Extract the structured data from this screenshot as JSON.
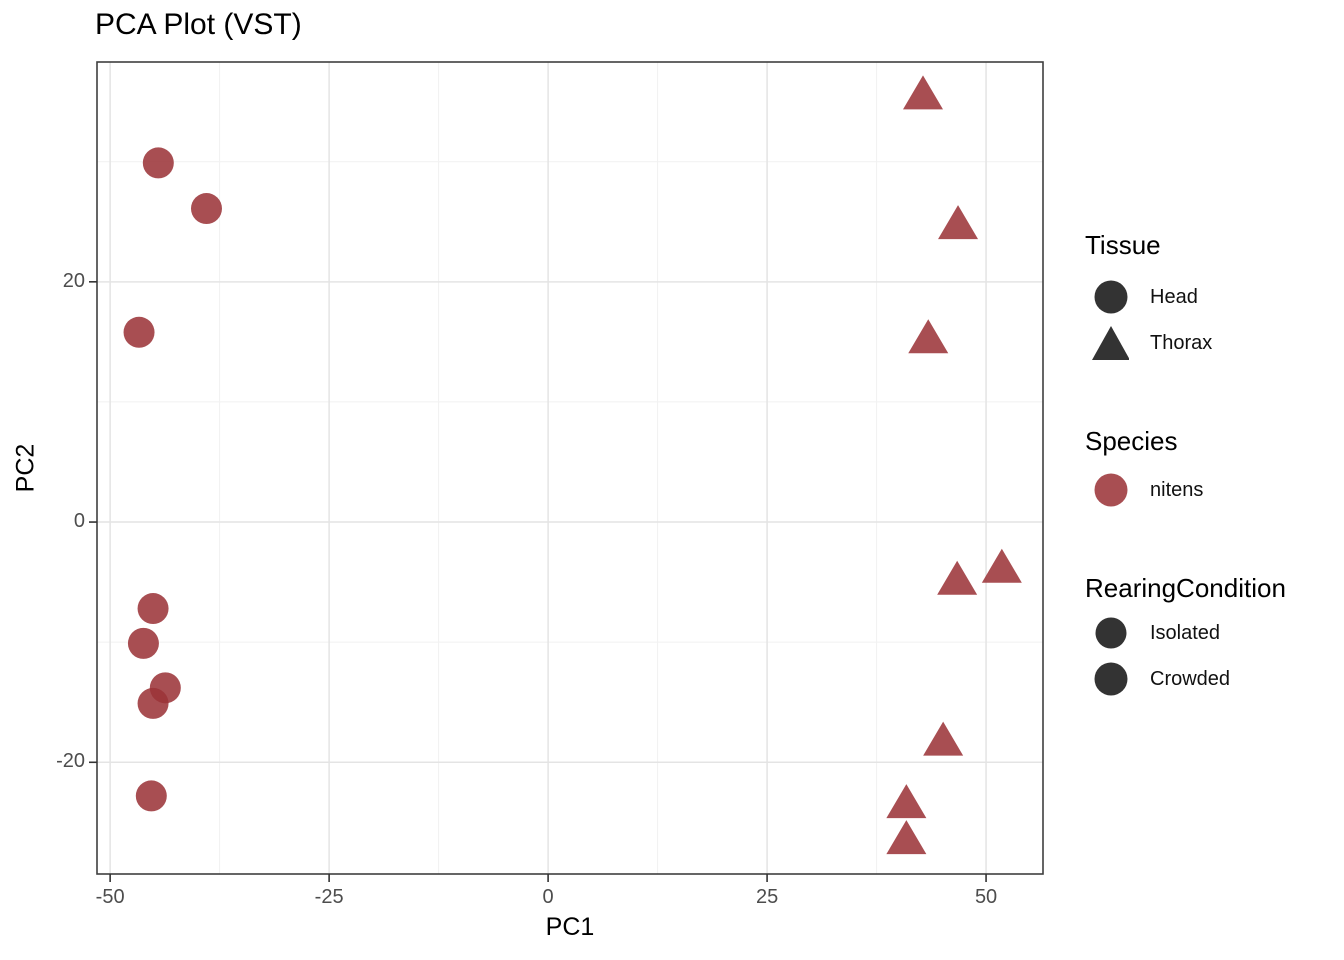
{
  "title": "PCA Plot (VST)",
  "axes": {
    "x": {
      "label": "PC1",
      "tick_labels": [
        "-50",
        "-25",
        "0",
        "25",
        "50"
      ],
      "tick_values": [
        -50,
        -25,
        0,
        25,
        50
      ],
      "minor_ticks": [
        -37.5,
        -12.5,
        12.5,
        37.5
      ],
      "lim": [
        -51.5,
        56.5
      ]
    },
    "y": {
      "label": "PC2",
      "tick_labels": [
        "20",
        "0",
        "-20"
      ],
      "tick_values": [
        20,
        0,
        -20
      ],
      "minor_ticks": [
        30,
        10,
        -10
      ],
      "lim": [
        -29.3,
        38.3
      ]
    }
  },
  "legend": {
    "tissue": {
      "title": "Tissue",
      "items": [
        {
          "label": "Head",
          "shape": "circle"
        },
        {
          "label": "Thorax",
          "shape": "triangle"
        }
      ]
    },
    "species": {
      "title": "Species",
      "items": [
        {
          "label": "nitens",
          "shape": "circle"
        }
      ]
    },
    "rearing_condition": {
      "title": "RearingCondition",
      "items": [
        {
          "label": "Isolated",
          "shape": "circle"
        },
        {
          "label": "Crowded",
          "shape": "circle"
        }
      ]
    }
  },
  "colors": {
    "point_fill": "#9B3438",
    "point_opacity": "0.87",
    "point_apparent": "#A8484C",
    "legend_symbol": "#333333",
    "grid_major": "#E4E4E4",
    "grid_minor": "#F1F1F1",
    "panel_border": "#3F3F3F",
    "tick_mark": "#333333",
    "tick_label": "#4D4D4D"
  },
  "chart_data": {
    "type": "scatter",
    "title": "PCA Plot (VST)",
    "xlabel": "PC1",
    "ylabel": "PC2",
    "xlim": [
      -51.5,
      56.5
    ],
    "ylim": [
      -29.3,
      38.3
    ],
    "x_ticks": [
      -50,
      -25,
      0,
      25,
      50
    ],
    "y_ticks": [
      20,
      0,
      -20
    ],
    "grid": true,
    "legend_position": "right",
    "point_color": "#A8484C",
    "series": [
      {
        "name": "Head",
        "tissue": "Head",
        "species": "nitens",
        "marker": "circle",
        "points": [
          [
            -44.5,
            29.9
          ],
          [
            -39.0,
            26.1
          ],
          [
            -46.7,
            15.8
          ],
          [
            -45.1,
            -7.2
          ],
          [
            -46.2,
            -10.1
          ],
          [
            -43.7,
            -13.8
          ],
          [
            -45.1,
            -15.1
          ],
          [
            -45.3,
            -22.8
          ]
        ]
      },
      {
        "name": "Thorax",
        "tissue": "Thorax",
        "species": "nitens",
        "marker": "triangle",
        "points": [
          [
            42.8,
            35.6
          ],
          [
            46.8,
            24.8
          ],
          [
            43.4,
            15.3
          ],
          [
            51.8,
            -3.8
          ],
          [
            46.7,
            -4.8
          ],
          [
            45.1,
            -18.2
          ],
          [
            40.9,
            -23.4
          ],
          [
            40.9,
            -26.4
          ]
        ]
      }
    ]
  }
}
